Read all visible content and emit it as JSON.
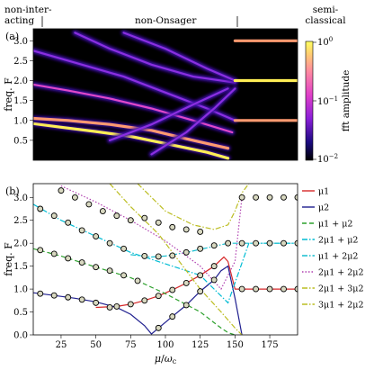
{
  "regime_labels": {
    "non_interacting_line1": "non-inter-",
    "non_interacting_line2": "acting",
    "non_onsager": "non-Onsager",
    "semiclassical_line1": "semi-",
    "semiclassical_line2": "classical"
  },
  "chart_data": [
    {
      "panel": "(a)",
      "type": "heatmap",
      "ylabel": "freq. F",
      "ylim": [
        0,
        3.3
      ],
      "yticks": [
        0.5,
        1.0,
        1.5,
        2.0,
        2.5,
        3.0
      ],
      "ytick_labels": [
        "0.5",
        "1.0",
        "1.5",
        "2.0",
        "2.5",
        "3.0"
      ],
      "xlim": [
        5,
        195
      ],
      "colormap": "plasma",
      "colorbar": {
        "label": "fft amplitude",
        "scale": "log",
        "range": [
          0.01,
          1
        ],
        "ticks": [
          1,
          0.1,
          0.01
        ],
        "tick_labels": [
          "10^0",
          "10^-1",
          "10^-2"
        ]
      },
      "regime_boundaries_x": [
        12,
        148
      ],
      "ridges": [
        {
          "points": [
            [
              5,
              0.92
            ],
            [
              25,
              0.83
            ],
            [
              50,
              0.72
            ],
            [
              75,
              0.6
            ],
            [
              100,
              0.42
            ],
            [
              130,
              0.2
            ],
            [
              145,
              0.05
            ]
          ],
          "amp": 0.95
        },
        {
          "points": [
            [
              5,
              1.05
            ],
            [
              30,
              1.0
            ],
            [
              60,
              0.9
            ],
            [
              90,
              0.75
            ],
            [
              120,
              0.5
            ],
            [
              145,
              0.3
            ]
          ],
          "amp": 0.55
        },
        {
          "points": [
            [
              5,
              1.9
            ],
            [
              30,
              1.75
            ],
            [
              60,
              1.55
            ],
            [
              90,
              1.3
            ],
            [
              120,
              1.0
            ],
            [
              148,
              0.7
            ]
          ],
          "amp": 0.35
        },
        {
          "points": [
            [
              5,
              2.75
            ],
            [
              40,
              2.4
            ],
            [
              70,
              2.1
            ],
            [
              100,
              1.7
            ],
            [
              130,
              1.3
            ],
            [
              150,
              1.0
            ]
          ],
          "amp": 0.3
        },
        {
          "points": [
            [
              35,
              3.2
            ],
            [
              60,
              2.8
            ],
            [
              90,
              2.4
            ],
            [
              120,
              2.1
            ],
            [
              150,
              1.95
            ]
          ],
          "amp": 0.3
        },
        {
          "points": [
            [
              70,
              3.2
            ],
            [
              100,
              2.8
            ],
            [
              130,
              2.3
            ],
            [
              150,
              2.0
            ]
          ],
          "amp": 0.25
        },
        {
          "points": [
            [
              60,
              0.5
            ],
            [
              90,
              0.9
            ],
            [
              120,
              1.4
            ],
            [
              145,
              1.8
            ]
          ],
          "amp": 0.2
        },
        {
          "points": [
            [
              90,
              0.15
            ],
            [
              115,
              0.7
            ],
            [
              135,
              1.3
            ],
            [
              150,
              1.8
            ]
          ],
          "amp": 0.18
        },
        {
          "points": [
            [
              150,
              3.0
            ],
            [
              195,
              3.0
            ]
          ],
          "amp": 0.8
        },
        {
          "points": [
            [
              150,
              2.0
            ],
            [
              195,
              2.0
            ]
          ],
          "amp": 0.95
        },
        {
          "points": [
            [
              150,
              1.0
            ],
            [
              195,
              1.0
            ]
          ],
          "amp": 0.55
        }
      ]
    },
    {
      "panel": "(b)",
      "type": "line",
      "xlabel": "μ/ω_c",
      "ylabel": "freq. F",
      "xlim": [
        5,
        195
      ],
      "ylim": [
        0,
        3.3
      ],
      "xticks": [
        25,
        50,
        75,
        100,
        125,
        150,
        175
      ],
      "xtick_labels": [
        "25",
        "50",
        "75",
        "100",
        "125",
        "150",
        "175"
      ],
      "yticks": [
        0.0,
        0.5,
        1.0,
        1.5,
        2.0,
        2.5,
        3.0
      ],
      "ytick_labels": [
        "0.0",
        "0.5",
        "1.0",
        "1.5",
        "2.0",
        "2.5",
        "3.0"
      ],
      "legend_position": "right",
      "series": [
        {
          "name": "μ1",
          "color": "#d62728",
          "dash": "solid",
          "x": [
            50,
            65,
            75,
            85,
            95,
            105,
            115,
            125,
            135,
            142,
            145,
            150,
            160,
            195
          ],
          "y": [
            0.6,
            0.62,
            0.67,
            0.75,
            0.85,
            0.98,
            1.13,
            1.3,
            1.5,
            1.7,
            1.6,
            1.0,
            1.0,
            1.0
          ]
        },
        {
          "name": "μ2",
          "color": "#1f1f8f",
          "dash": "solid",
          "x": [
            5,
            20,
            35,
            50,
            65,
            75,
            85,
            90,
            95,
            105,
            115,
            125,
            135,
            140,
            145,
            150,
            155
          ],
          "y": [
            0.92,
            0.86,
            0.8,
            0.72,
            0.6,
            0.45,
            0.2,
            0.02,
            0.15,
            0.4,
            0.65,
            0.95,
            1.2,
            1.4,
            1.5,
            0.8,
            0.0
          ]
        },
        {
          "name": "μ1 + μ2",
          "color": "#2ca02c",
          "dash": "dashed",
          "x": [
            5,
            25,
            50,
            75,
            100,
            125,
            140,
            145,
            150
          ],
          "y": [
            1.88,
            1.72,
            1.48,
            1.25,
            0.9,
            0.5,
            0.15,
            0.05,
            0.0
          ]
        },
        {
          "name": "2μ1 + μ2",
          "color": "#00bcd4",
          "dash": "dashdot",
          "x": [
            5,
            25,
            50,
            75,
            100,
            125,
            145,
            160,
            195
          ],
          "y": [
            2.85,
            2.5,
            2.15,
            1.8,
            1.55,
            1.3,
            0.7,
            2.0,
            2.0
          ]
        },
        {
          "name": "μ1 + 2μ2",
          "color": "#17becf",
          "dash": "dashdot",
          "x": [
            75,
            90,
            100,
            115,
            130,
            145,
            160,
            195
          ],
          "y": [
            1.75,
            1.7,
            1.72,
            1.8,
            1.9,
            2.0,
            2.0,
            2.0
          ]
        },
        {
          "name": "2μ1 + 2μ2",
          "color": "#b040b0",
          "dash": "dotted",
          "x": [
            25,
            50,
            75,
            100,
            125,
            140,
            150,
            155
          ],
          "y": [
            3.25,
            2.9,
            2.5,
            2.05,
            1.5,
            1.0,
            1.6,
            3.0
          ]
        },
        {
          "name": "2μ1 + 3μ2",
          "color": "#bcbd22",
          "dash": "dashdot",
          "x": [
            60,
            75,
            95,
            110,
            125,
            140,
            150,
            155
          ],
          "y": [
            3.3,
            2.8,
            2.2,
            1.6,
            1.0,
            0.5,
            0.15,
            0.0
          ]
        },
        {
          "name": "3μ1 + 2μ2",
          "color": "#bcbd22",
          "dash": "dashdot",
          "x": [
            80,
            100,
            120,
            135,
            145,
            150,
            155,
            160
          ],
          "y": [
            3.3,
            2.7,
            2.4,
            2.3,
            2.4,
            2.7,
            3.1,
            3.3
          ]
        }
      ],
      "markers": {
        "groups": [
          {
            "edge": "#1f1f8f",
            "x": [
              10,
              20,
              30,
              40,
              50,
              60
            ],
            "y": [
              0.9,
              0.86,
              0.82,
              0.77,
              0.7,
              0.6
            ]
          },
          {
            "edge": "#1f1f8f",
            "x": [
              95,
              105,
              115,
              125,
              135
            ],
            "y": [
              0.15,
              0.4,
              0.65,
              0.95,
              1.2
            ]
          },
          {
            "edge": "#d62728",
            "x": [
              65,
              75,
              85,
              95,
              105,
              115,
              125,
              135
            ],
            "y": [
              0.62,
              0.67,
              0.75,
              0.85,
              0.98,
              1.13,
              1.3,
              1.5
            ]
          },
          {
            "edge": "#2ca02c",
            "x": [
              10,
              20,
              30,
              40,
              50,
              60,
              70,
              80
            ],
            "y": [
              1.85,
              1.77,
              1.67,
              1.58,
              1.48,
              1.4,
              1.3,
              1.18
            ]
          },
          {
            "edge": "#00bcd4",
            "x": [
              10,
              20,
              30,
              40,
              50,
              60,
              70
            ],
            "y": [
              2.75,
              2.6,
              2.45,
              2.28,
              2.15,
              2.0,
              1.88
            ]
          },
          {
            "edge": "#17becf",
            "x": [
              85,
              95,
              105,
              115,
              125,
              135,
              145,
              155,
              165,
              175,
              185,
              195
            ],
            "y": [
              1.72,
              1.71,
              1.73,
              1.8,
              1.88,
              1.95,
              2.0,
              2.0,
              2.0,
              2.0,
              2.0,
              2.0
            ]
          },
          {
            "edge": "#b040b0",
            "x": [
              25,
              35,
              45,
              55,
              65,
              75
            ],
            "y": [
              3.15,
              3.0,
              2.85,
              2.7,
              2.6,
              2.5
            ]
          },
          {
            "edge": "#bcbd22",
            "x": [
              85,
              95,
              105,
              115,
              125
            ],
            "y": [
              2.55,
              2.45,
              2.35,
              2.3,
              2.25
            ]
          },
          {
            "edge": "#d62728",
            "x": [
              155,
              165,
              175,
              185,
              195
            ],
            "y": [
              1.0,
              1.0,
              1.0,
              1.0,
              1.0
            ]
          },
          {
            "edge": "#b040b0",
            "x": [
              155,
              165,
              175,
              185,
              195
            ],
            "y": [
              3.0,
              3.0,
              3.0,
              3.0,
              3.0
            ]
          }
        ]
      },
      "legend": [
        {
          "label": "μ1",
          "color": "#d62728",
          "dash": "solid"
        },
        {
          "label": "μ2",
          "color": "#1f1f8f",
          "dash": "solid"
        },
        {
          "label": "μ1 + μ2",
          "color": "#2ca02c",
          "dash": "dashed"
        },
        {
          "label": "2μ1 + μ2",
          "color": "#00bcd4",
          "dash": "dashdot"
        },
        {
          "label": "μ1 + 2μ2",
          "color": "#17becf",
          "dash": "dashdot"
        },
        {
          "label": "2μ1 + 2μ2",
          "color": "#b040b0",
          "dash": "dotted"
        },
        {
          "label": "2μ1 + 3μ2",
          "color": "#bcbd22",
          "dash": "dashdot"
        },
        {
          "label": "3μ1 + 2μ2",
          "color": "#bcbd22",
          "dash": "dashdot"
        }
      ]
    }
  ]
}
